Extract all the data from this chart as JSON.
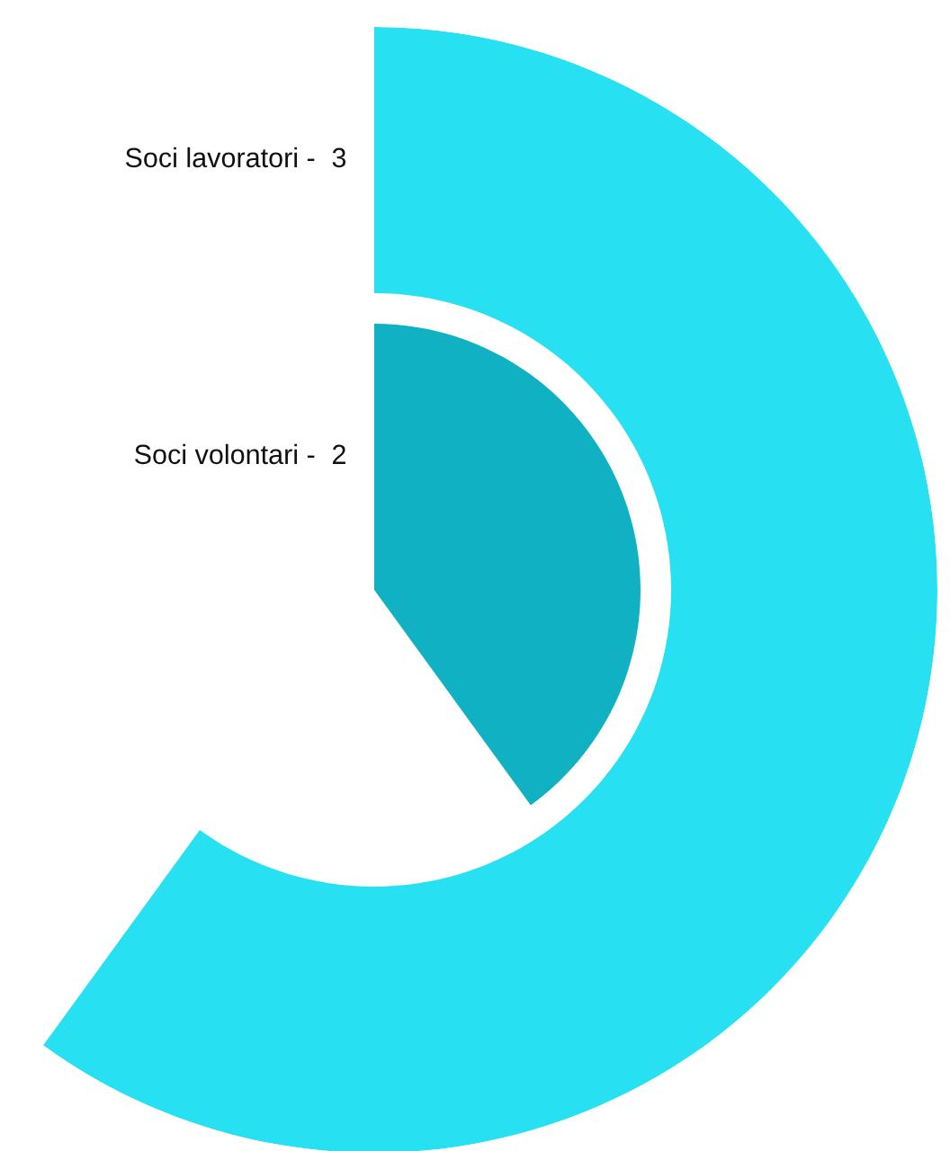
{
  "chart_data": {
    "type": "other",
    "categories": [
      "Soci lavoratori -",
      "Soci volontari -"
    ],
    "values": [
      3,
      2
    ],
    "colors": [
      "#27e1f2",
      "#0fb1c2"
    ],
    "data_labels": true
  }
}
